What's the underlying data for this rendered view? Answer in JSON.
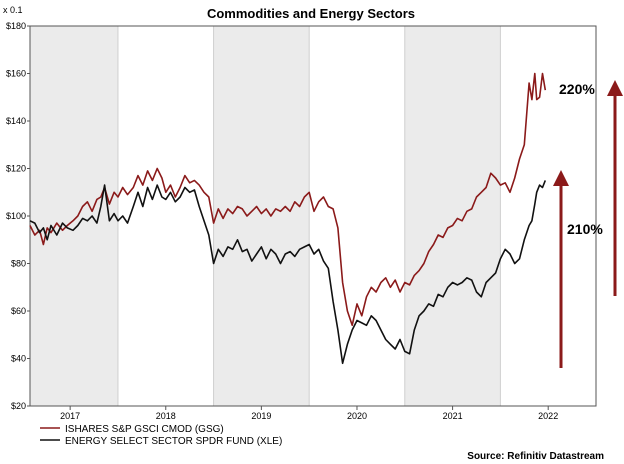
{
  "chart_data": {
    "type": "line",
    "title": "Commodities and Energy Sectors",
    "scale_note": "x 0.1",
    "y_tick_labels": [
      "$20",
      "$40",
      "$60",
      "$80",
      "$100",
      "$120",
      "$140",
      "$160",
      "$180"
    ],
    "y_ticks": [
      20,
      40,
      60,
      80,
      100,
      120,
      140,
      160,
      180
    ],
    "ylim": [
      20,
      180
    ],
    "x_tick_labels": [
      "2017",
      "2018",
      "2019",
      "2020",
      "2021",
      "2022"
    ],
    "x_ticks": [
      2017.0,
      2018.0,
      2019.0,
      2020.0,
      2021.0,
      2022.0
    ],
    "xlim": [
      2016.58,
      2022.5
    ],
    "shaded_years": [
      [
        2016.58,
        2017.5
      ],
      [
        2018.5,
        2019.5
      ],
      [
        2020.5,
        2021.5
      ]
    ],
    "series": [
      {
        "name": "ISHARES S&P GSCI CMOD (GSG)",
        "color": "#8b1a1a",
        "x": [
          2016.58,
          2016.63,
          2016.68,
          2016.72,
          2016.76,
          2016.8,
          2016.86,
          2016.92,
          2016.97,
          2017.03,
          2017.08,
          2017.13,
          2017.18,
          2017.23,
          2017.28,
          2017.32,
          2017.36,
          2017.41,
          2017.46,
          2017.5,
          2017.55,
          2017.6,
          2017.66,
          2017.71,
          2017.76,
          2017.81,
          2017.86,
          2017.91,
          2017.96,
          2018.0,
          2018.05,
          2018.1,
          2018.15,
          2018.2,
          2018.25,
          2018.3,
          2018.35,
          2018.4,
          2018.45,
          2018.5,
          2018.55,
          2018.6,
          2018.65,
          2018.7,
          2018.75,
          2018.8,
          2018.85,
          2018.9,
          2018.95,
          2019.0,
          2019.05,
          2019.1,
          2019.15,
          2019.2,
          2019.25,
          2019.3,
          2019.35,
          2019.4,
          2019.45,
          2019.5,
          2019.55,
          2019.6,
          2019.65,
          2019.7,
          2019.75,
          2019.8,
          2019.85,
          2019.9,
          2019.95,
          2020.0,
          2020.05,
          2020.1,
          2020.15,
          2020.2,
          2020.25,
          2020.3,
          2020.35,
          2020.4,
          2020.45,
          2020.5,
          2020.55,
          2020.6,
          2020.65,
          2020.7,
          2020.75,
          2020.8,
          2020.85,
          2020.9,
          2020.95,
          2021.0,
          2021.05,
          2021.1,
          2021.15,
          2021.2,
          2021.25,
          2021.3,
          2021.35,
          2021.4,
          2021.45,
          2021.5,
          2021.55,
          2021.6,
          2021.65,
          2021.7,
          2021.75,
          2021.8,
          2021.83,
          2021.86,
          2021.88,
          2021.91,
          2021.94,
          2021.97
        ],
        "y": [
          96,
          92,
          94,
          88,
          95,
          93,
          97,
          94,
          96,
          98,
          100,
          104,
          106,
          102,
          107,
          108,
          112,
          105,
          110,
          108,
          112,
          109,
          112,
          117,
          113,
          119,
          115,
          120,
          116,
          110,
          113,
          108,
          112,
          117,
          114,
          115,
          113,
          110,
          108,
          97,
          103,
          99,
          103,
          101,
          104,
          103,
          100,
          102,
          104,
          101,
          103,
          100,
          103,
          102,
          104,
          102,
          106,
          104,
          108,
          110,
          102,
          106,
          108,
          104,
          103,
          95,
          72,
          60,
          54,
          63,
          58,
          66,
          70,
          68,
          72,
          74,
          70,
          73,
          68,
          72,
          71,
          75,
          77,
          80,
          85,
          88,
          92,
          91,
          95,
          96,
          99,
          98,
          102,
          103,
          108,
          110,
          112,
          118,
          116,
          113,
          114,
          110,
          116,
          124,
          130,
          156,
          149,
          160,
          149,
          150,
          160,
          153
        ],
        "values_note": "values in $ x 0.1 as labeled"
      },
      {
        "name": "ENERGY SELECT SECTOR SPDR FUND (XLE)",
        "color": "#111111",
        "x": [
          2016.58,
          2016.63,
          2016.68,
          2016.72,
          2016.76,
          2016.8,
          2016.86,
          2016.92,
          2016.97,
          2017.03,
          2017.08,
          2017.13,
          2017.18,
          2017.23,
          2017.28,
          2017.32,
          2017.36,
          2017.41,
          2017.46,
          2017.5,
          2017.55,
          2017.6,
          2017.66,
          2017.71,
          2017.76,
          2017.81,
          2017.86,
          2017.91,
          2017.96,
          2018.0,
          2018.05,
          2018.1,
          2018.15,
          2018.2,
          2018.25,
          2018.3,
          2018.35,
          2018.4,
          2018.45,
          2018.5,
          2018.55,
          2018.6,
          2018.65,
          2018.7,
          2018.75,
          2018.8,
          2018.85,
          2018.9,
          2018.95,
          2019.0,
          2019.05,
          2019.1,
          2019.15,
          2019.2,
          2019.25,
          2019.3,
          2019.35,
          2019.4,
          2019.45,
          2019.5,
          2019.55,
          2019.6,
          2019.65,
          2019.7,
          2019.75,
          2019.8,
          2019.85,
          2019.9,
          2019.95,
          2020.0,
          2020.05,
          2020.1,
          2020.15,
          2020.2,
          2020.25,
          2020.3,
          2020.35,
          2020.4,
          2020.45,
          2020.5,
          2020.55,
          2020.6,
          2020.65,
          2020.7,
          2020.75,
          2020.8,
          2020.85,
          2020.9,
          2020.95,
          2021.0,
          2021.05,
          2021.1,
          2021.15,
          2021.2,
          2021.25,
          2021.3,
          2021.35,
          2021.4,
          2021.45,
          2021.5,
          2021.55,
          2021.6,
          2021.65,
          2021.7,
          2021.75,
          2021.8,
          2021.83,
          2021.86,
          2021.88,
          2021.91,
          2021.94,
          2021.97
        ],
        "y": [
          98,
          97,
          93,
          95,
          90,
          96,
          92,
          97,
          95,
          94,
          96,
          99,
          98,
          100,
          97,
          104,
          113,
          98,
          101,
          98,
          100,
          97,
          104,
          110,
          104,
          112,
          107,
          113,
          108,
          107,
          110,
          106,
          108,
          112,
          110,
          111,
          104,
          98,
          92,
          80,
          86,
          83,
          87,
          86,
          90,
          85,
          86,
          81,
          84,
          87,
          82,
          86,
          84,
          80,
          84,
          85,
          83,
          86,
          87,
          88,
          84,
          86,
          81,
          78,
          64,
          52,
          38,
          46,
          52,
          56,
          55,
          54,
          58,
          56,
          52,
          48,
          46,
          44,
          48,
          43,
          42,
          52,
          58,
          60,
          63,
          62,
          67,
          66,
          70,
          72,
          71,
          72,
          74,
          73,
          68,
          66,
          72,
          74,
          76,
          82,
          86,
          84,
          80,
          82,
          90,
          96,
          98,
          105,
          110,
          113,
          112,
          115
        ],
        "values_note": "values in $ x 0.1 as labeled"
      }
    ],
    "annotations": [
      {
        "text": "220%",
        "color": "#000000"
      },
      {
        "text": "210%",
        "color": "#000000"
      }
    ],
    "legend_position": "bottom-left",
    "grid": false,
    "source": "Source: Refinitiv Datastream",
    "arrow_color": "#8b1a1a"
  }
}
